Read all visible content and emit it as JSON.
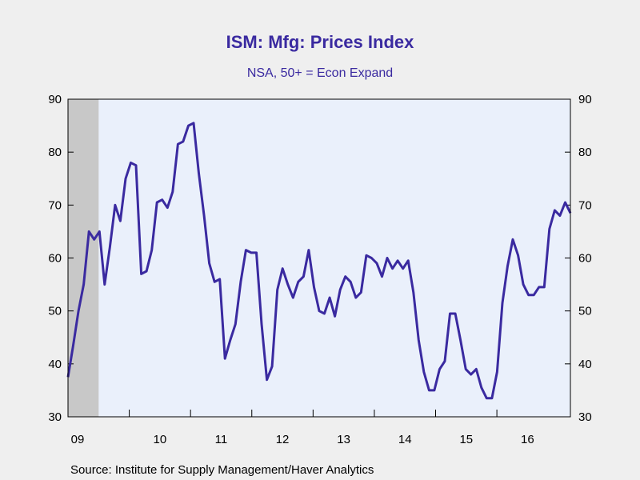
{
  "chart_data": {
    "type": "line",
    "title": "ISM: Mfg: Prices Index",
    "subtitle": "NSA, 50+ = Econ Expand",
    "source": "Source:  Institute for Supply Management/Haver Analytics",
    "xlabel": "",
    "ylabel": "",
    "x_start": 2009.0,
    "x_end": 2017.2,
    "ylim": [
      30,
      90
    ],
    "y_ticks": [
      "30",
      "40",
      "50",
      "60",
      "70",
      "80",
      "90"
    ],
    "x_ticks": [
      "09",
      "10",
      "11",
      "12",
      "13",
      "14",
      "15",
      "16"
    ],
    "shaded_period": [
      2009.0,
      2009.5
    ],
    "grid": false,
    "colors": {
      "line": "#3a2aa0",
      "plot_bg": "#eaf0fb",
      "page_bg": "#efefef",
      "shade": "#c8c8c8"
    },
    "series": [
      {
        "values": [
          37.5,
          43.5,
          50.0,
          55.0,
          65.0,
          63.5,
          65.0,
          55.0,
          62.0,
          70.0,
          67.0,
          75.0,
          78.0,
          77.5,
          57.0,
          57.5,
          61.5,
          70.5,
          71.0,
          69.5,
          72.5,
          81.5,
          82.0,
          85.0,
          85.5,
          76.0,
          68.0,
          59.0,
          55.5,
          56.0,
          41.0,
          44.5,
          47.5,
          55.5,
          61.5,
          61.0,
          61.0,
          47.5,
          37.0,
          39.5,
          54.0,
          58.0,
          55.0,
          52.5,
          55.5,
          56.5,
          61.5,
          54.5,
          50.0,
          49.5,
          52.5,
          49.0,
          54.0,
          56.5,
          55.5,
          52.5,
          53.5,
          60.5,
          60.0,
          59.0,
          56.5,
          60.0,
          58.0,
          59.5,
          58.0,
          59.5,
          53.5,
          44.5,
          38.5,
          35.0,
          35.0,
          39.0,
          40.5,
          49.5,
          49.5,
          44.5,
          39.0,
          38.0,
          39.0,
          35.5,
          33.5,
          33.5,
          38.5,
          51.5,
          58.5,
          63.5,
          60.5,
          55.0,
          53.0,
          53.0,
          54.5,
          54.5,
          65.5,
          69.0,
          68.0,
          70.5,
          68.5
        ]
      }
    ]
  }
}
